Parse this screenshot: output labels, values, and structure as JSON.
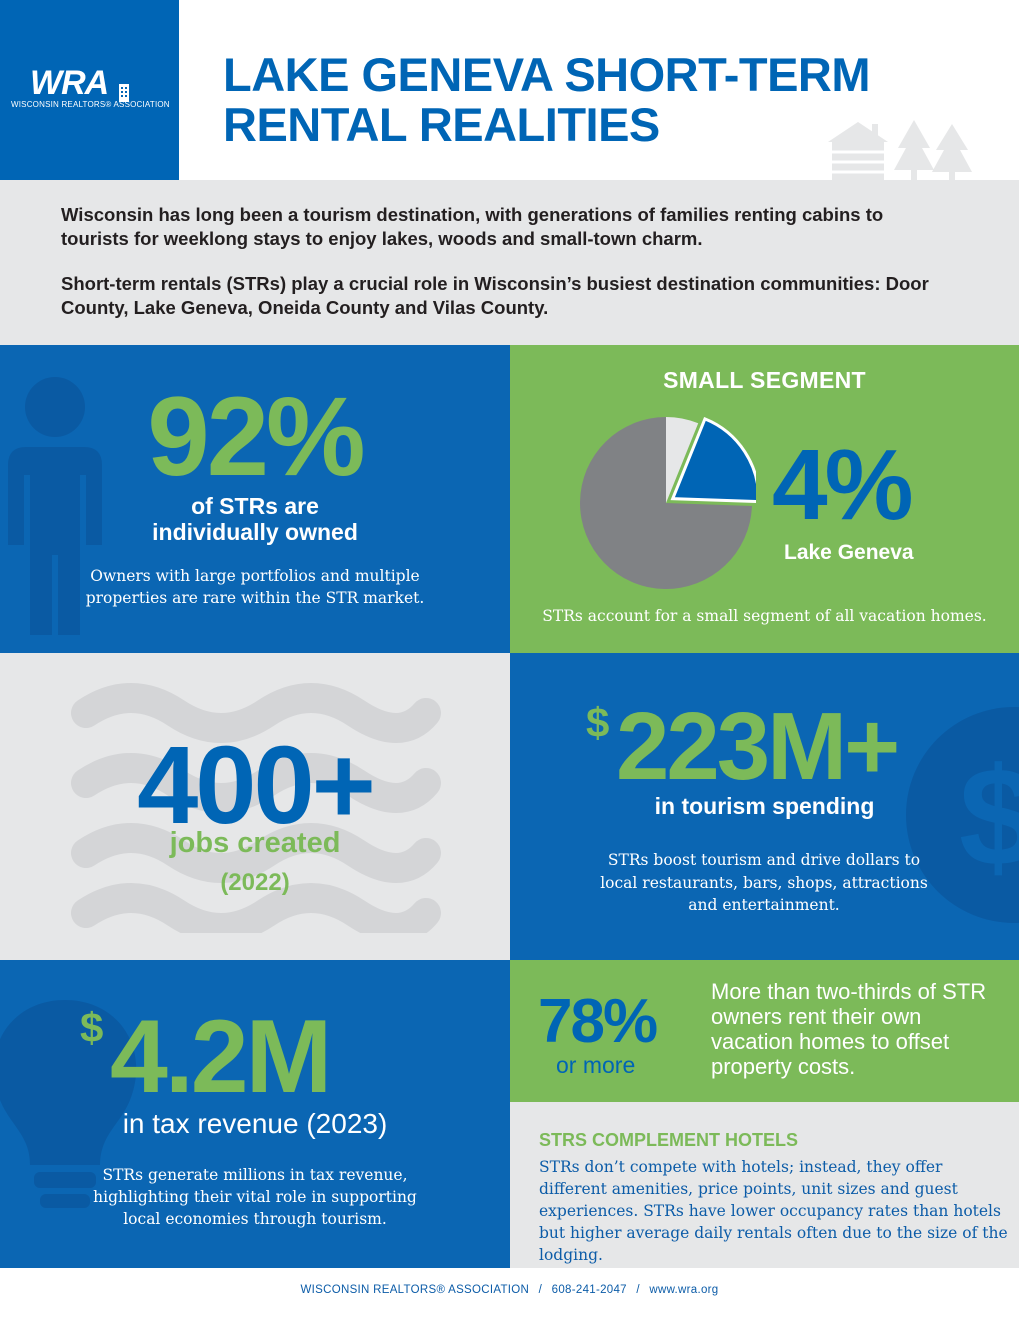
{
  "header": {
    "logo_text": "WRA",
    "logo_subtitle": "WISCONSIN REALTORS® ASSOCIATION",
    "title_line1": "LAKE GENEVA SHORT-TERM",
    "title_line2": "RENTAL REALITIES"
  },
  "intro": {
    "paragraph1": "Wisconsin has long been a tourism destination, with generations of families renting cabins to tourists for weeklong stays to enjoy lakes, woods and small-town charm.",
    "paragraph2": "Short-term rentals (STRs) play a crucial role in Wisconsin’s busiest destination communities: Door County, Lake Geneva, Oneida County and Vilas County."
  },
  "ownership": {
    "stat": "92%",
    "label_line1": "of STRs are",
    "label_line2": "individually owned",
    "note": "Owners with large portfolios and multiple properties are rare within the STR market."
  },
  "segment": {
    "heading": "SMALL SEGMENT",
    "stat": "4%",
    "location": "Lake Geneva",
    "note": "STRs account for a small segment of all vacation homes.",
    "share_fraction": 0.04
  },
  "jobs": {
    "stat": "400+",
    "label": "jobs created",
    "year": "(2022)"
  },
  "spending": {
    "currency": "$",
    "stat": "223M+",
    "label": "in tourism spending",
    "note": "STRs boost tourism and drive dollars to local restaurants, bars, shops, attractions and entertainment."
  },
  "tax": {
    "currency": "$",
    "stat": "4.2M",
    "label": "in tax revenue (2023)",
    "note": "STRs generate millions in tax revenue, highlighting their vital role in supporting local economies through tourism."
  },
  "owners": {
    "stat": "78%",
    "qualifier": "or more",
    "description": "More than two-thirds of STR owners rent their own vacation homes to offset property costs."
  },
  "hotels": {
    "heading": "STRS COMPLEMENT HOTELS",
    "body": "STRs don’t compete with hotels; instead, they offer different amenities, price points, unit sizes and guest experiences. STRs have lower occupancy rates than hotels but higher average daily rentals often due to the size of the lodging."
  },
  "footer": {
    "org": "WISCONSIN REALTORS® ASSOCIATION",
    "phone": "608-241-2047",
    "website": "www.wra.org",
    "separator": "/"
  },
  "colors": {
    "brand_blue": "#0065b5",
    "green": "#7cba59",
    "light_gray": "#e6e7e8",
    "pie_gray": "#808285"
  }
}
